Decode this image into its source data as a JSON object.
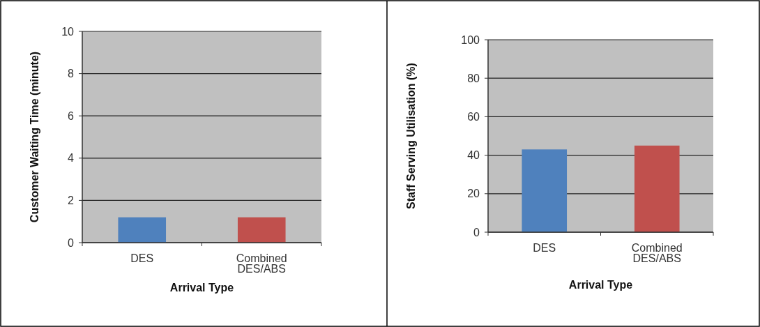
{
  "chart_data": [
    {
      "type": "bar",
      "categories": [
        "DES",
        "Combined DES/ABS"
      ],
      "values": [
        1.2,
        1.2
      ],
      "colors": [
        "#4f81bd",
        "#c0504d"
      ],
      "xlabel": "Arrival Type",
      "ylabel": "Customer Waiting Time (minute)",
      "ylim": [
        0,
        10
      ],
      "yticks": [
        0,
        2,
        4,
        6,
        8,
        10
      ],
      "grid": "y"
    },
    {
      "type": "bar",
      "categories": [
        "DES",
        "Combined DES/ABS"
      ],
      "values": [
        43,
        45
      ],
      "colors": [
        "#4f81bd",
        "#c0504d"
      ],
      "xlabel": "Arrival Type",
      "ylabel": "Staff Serving Utilisation (%)",
      "ylim": [
        0,
        100
      ],
      "yticks": [
        0,
        20,
        40,
        60,
        80,
        100
      ],
      "grid": "y"
    }
  ]
}
